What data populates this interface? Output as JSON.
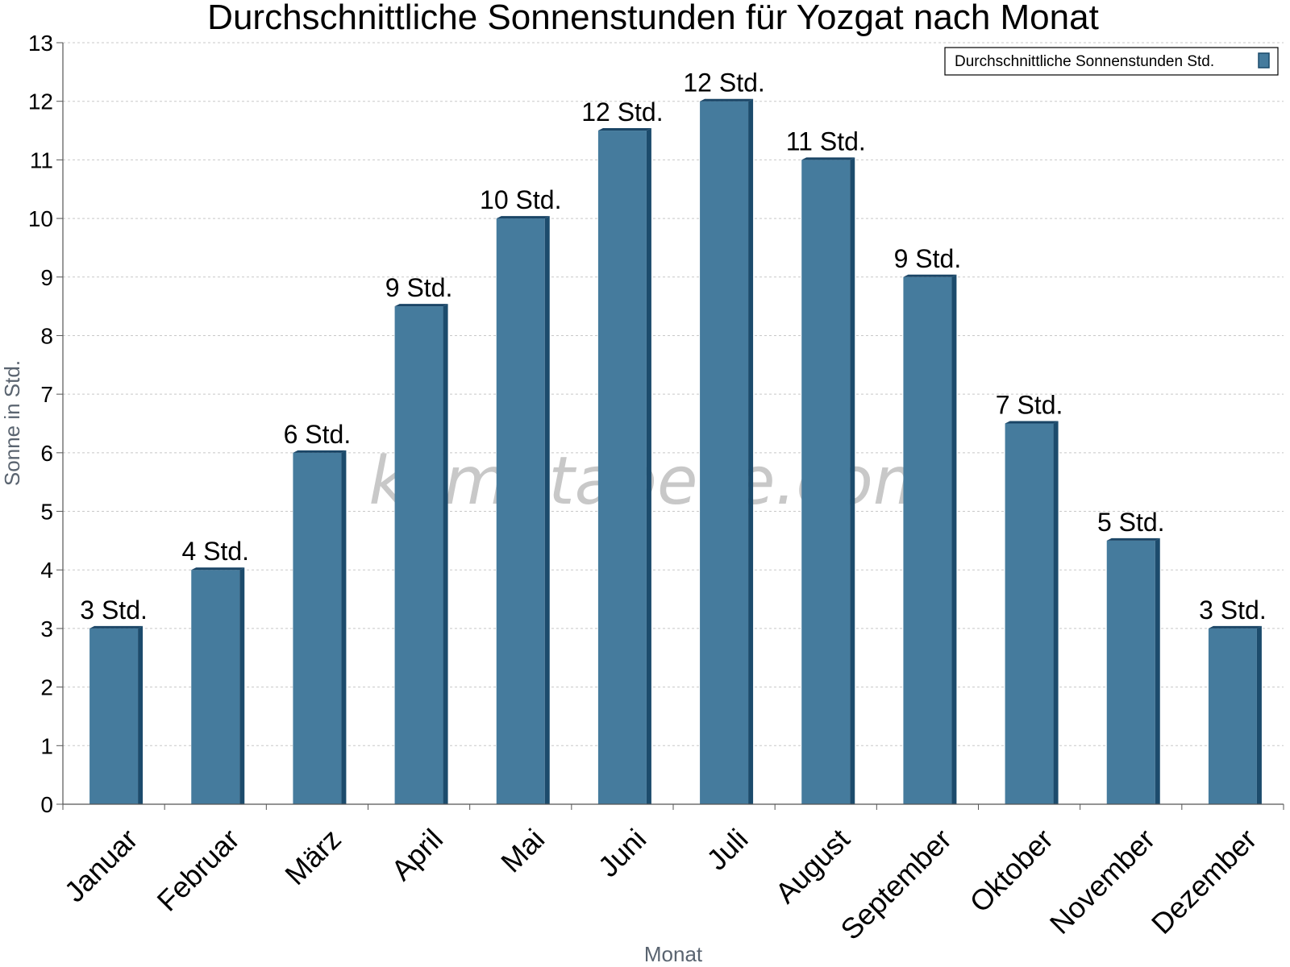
{
  "chart_data": {
    "type": "bar",
    "title": "Durchschnittliche Sonnenstunden für Yozgat nach Monat",
    "xlabel": "Monat",
    "ylabel": "Sonne in Std.",
    "ylim": [
      0,
      13
    ],
    "yticks": [
      0,
      1,
      2,
      3,
      4,
      5,
      6,
      7,
      8,
      9,
      10,
      11,
      12,
      13
    ],
    "grid": true,
    "legend_position": "top-right",
    "watermark": "klimatabelle.com",
    "categories": [
      "Januar",
      "Februar",
      "März",
      "April",
      "Mai",
      "Juni",
      "Juli",
      "August",
      "September",
      "Oktober",
      "November",
      "Dezember"
    ],
    "series": [
      {
        "name": "Durchschnittliche Sonnenstunden Std.",
        "color": "#457b9d",
        "values": [
          3,
          4,
          6,
          8.5,
          10,
          11.5,
          12,
          11,
          9,
          6.5,
          4.5,
          3
        ],
        "labels": [
          "3 Std.",
          "4 Std.",
          "6 Std.",
          "9 Std.",
          "10 Std.",
          "12 Std.",
          "12 Std.",
          "11 Std.",
          "9 Std.",
          "7 Std.",
          "5 Std.",
          "3 Std."
        ]
      }
    ]
  }
}
